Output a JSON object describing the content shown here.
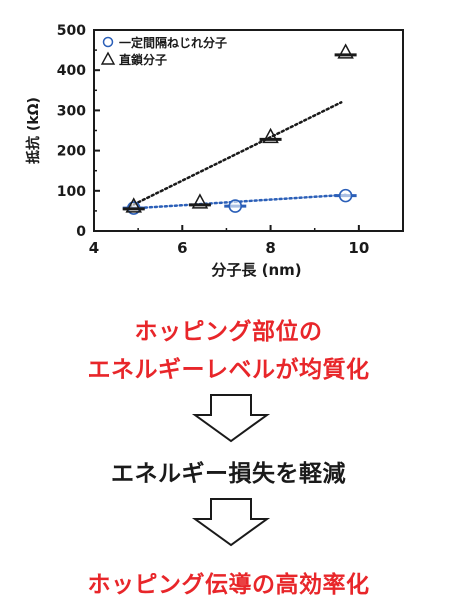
{
  "chart_data": {
    "type": "scatter",
    "title": "",
    "xlabel": "分子長 (nm)",
    "ylabel": "抵抗 (kΩ)",
    "xlim": [
      4,
      11
    ],
    "ylim": [
      0,
      500
    ],
    "xticks": [
      4,
      6,
      8,
      10
    ],
    "yticks": [
      0,
      100,
      200,
      300,
      400,
      500
    ],
    "grid": false,
    "legend_position": "top-left",
    "series": [
      {
        "name": "一定間隔ねじれ分子",
        "marker": "circle",
        "color": "#2b5fb8",
        "points": [
          {
            "x": 4.9,
            "y": 57
          },
          {
            "x": 7.2,
            "y": 62
          },
          {
            "x": 9.7,
            "y": 88
          }
        ],
        "fit": {
          "style": "dotted",
          "from": [
            4.7,
            55
          ],
          "to": [
            9.7,
            90
          ]
        }
      },
      {
        "name": "直鎖分子",
        "marker": "triangle",
        "color": "#1a1a1a",
        "points": [
          {
            "x": 4.9,
            "y": 60
          },
          {
            "x": 6.4,
            "y": 70
          },
          {
            "x": 8.0,
            "y": 233
          },
          {
            "x": 9.7,
            "y": 443
          }
        ],
        "fit": {
          "style": "dotted",
          "from": [
            4.7,
            55
          ],
          "to": [
            9.6,
            320
          ]
        }
      }
    ]
  },
  "text": {
    "line1": "ホッピング部位の",
    "line2": "エネルギーレベルが均質化",
    "line3": "エネルギー損失を軽減",
    "line4": "ホッピング伝導の高効率化"
  },
  "colors": {
    "red": "#e8262a",
    "black": "#1a1a1a",
    "blue": "#2b5fb8"
  }
}
